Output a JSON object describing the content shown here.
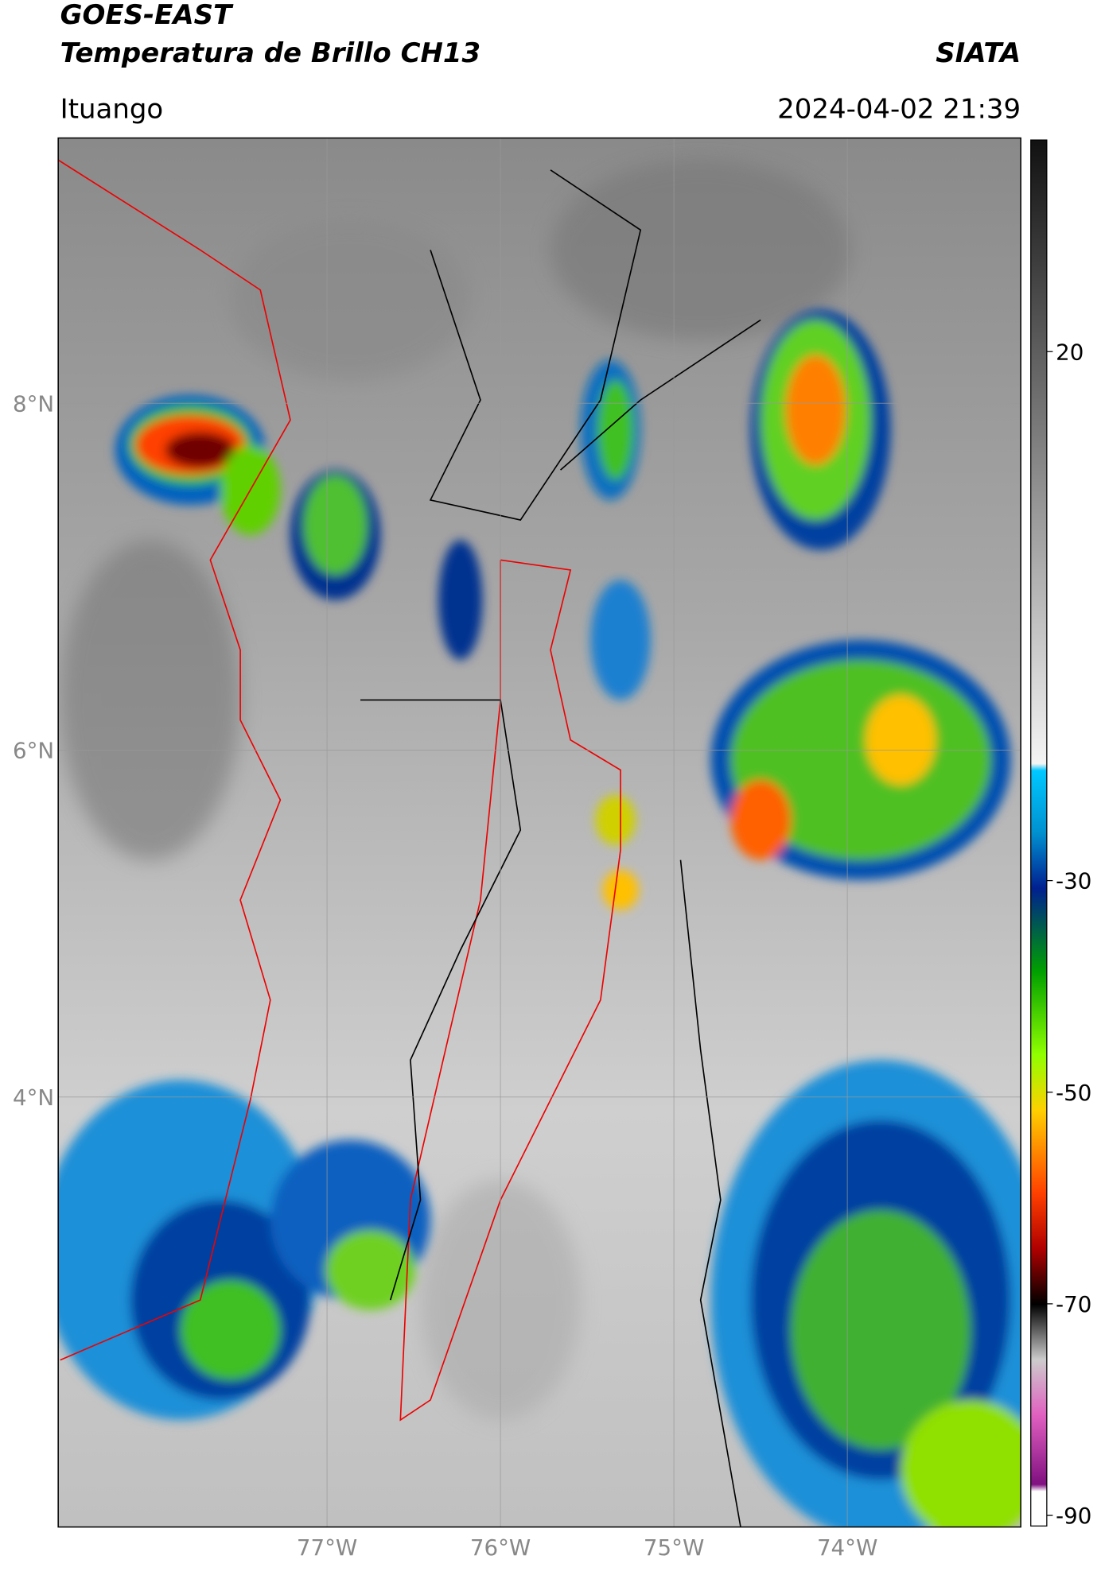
{
  "header": {
    "title": "GOES-EAST",
    "subtitle": "Temperatura de Brillo CH13",
    "brand": "SIATA",
    "location": "Ituango",
    "timestamp": "2024-04-02 21:39"
  },
  "map": {
    "lon_range": [
      -78.55,
      -73.0
    ],
    "lat_range": [
      1.52,
      9.53
    ],
    "lat_ticks": [
      {
        "value": 8,
        "label": "8°N"
      },
      {
        "value": 6,
        "label": "6°N"
      },
      {
        "value": 4,
        "label": "4°N"
      }
    ],
    "lon_ticks": [
      {
        "value": -77,
        "label": "77°W"
      },
      {
        "value": -76,
        "label": "76°W"
      },
      {
        "value": -75,
        "label": "75°W"
      },
      {
        "value": -74,
        "label": "74°W"
      }
    ]
  },
  "colorbar": {
    "range": [
      -91,
      40
    ],
    "ticks": [
      20,
      -30,
      -50,
      -70,
      -90
    ]
  }
}
